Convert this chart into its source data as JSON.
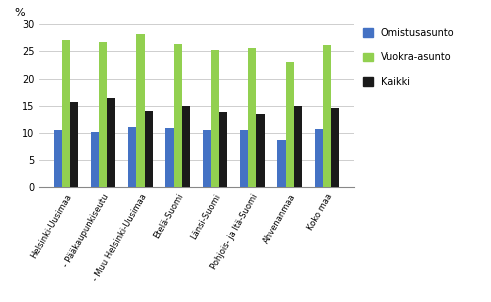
{
  "categories": [
    "Helsinki-Uusimaa",
    " - Pääkaupunkiseutu",
    " - Muu Helsinki-Uusimaa",
    "Etelä-Suomi",
    "Länsi-Suomi",
    "Pohjois- ja Itä-Suomi",
    "Ahvenanmaa",
    "Koko maa"
  ],
  "series": {
    "Omistusasunto": [
      10.6,
      10.1,
      11.1,
      10.9,
      10.6,
      10.6,
      8.6,
      10.8
    ],
    "Vuokra-asunto": [
      27.0,
      26.7,
      28.1,
      26.3,
      25.2,
      25.7,
      23.1,
      26.2
    ],
    "Kaikki": [
      15.6,
      16.5,
      14.0,
      14.9,
      13.9,
      13.4,
      15.0,
      14.5
    ]
  },
  "colors": {
    "Omistusasunto": "#4472C4",
    "Vuokra-asunto": "#92D050",
    "Kaikki": "#1a1a1a"
  },
  "ylim": [
    0,
    30
  ],
  "yticks": [
    0,
    5,
    10,
    15,
    20,
    25,
    30
  ],
  "ylabel": "%",
  "legend_labels": [
    "Omistusasunto",
    "Vuokra-asunto",
    "Kaikki"
  ],
  "background_color": "#ffffff",
  "grid_color": "#bbbbbb"
}
